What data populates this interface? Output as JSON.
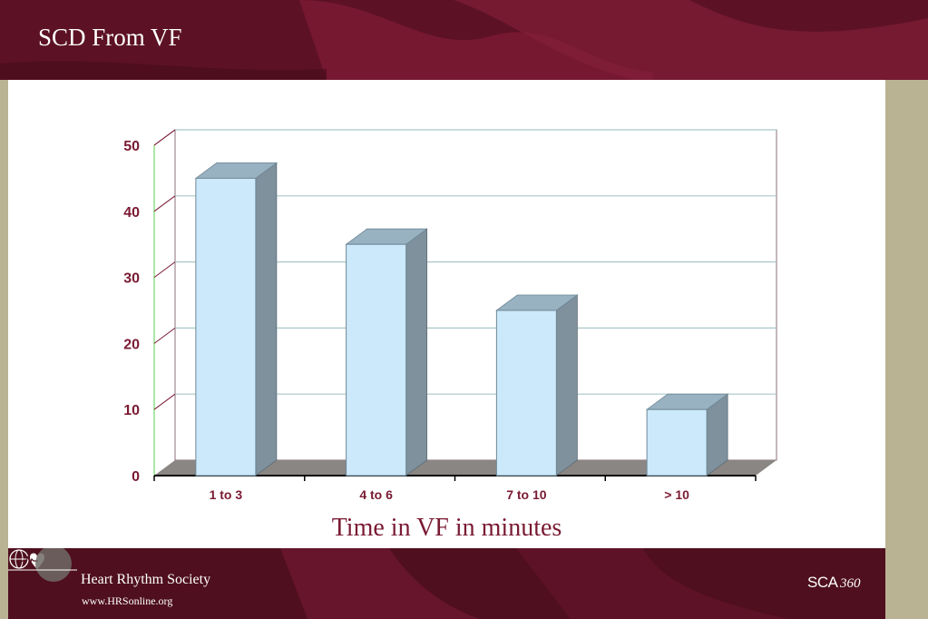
{
  "slide": {
    "title": "SCD From VF",
    "colors": {
      "header": "#5c1224",
      "footer": "#4f0f1e",
      "accent": "#7a1a33",
      "bar_front": "#cce9fb",
      "bar_side": "#7e919d",
      "bar_top": "#98b2c1"
    }
  },
  "footer": {
    "org_name": "Heart Rhythm Society",
    "url": "www.HRSonline.org",
    "badge_text": "SCA",
    "badge_number": "360",
    "logo_icon": "globe-heart-icon"
  },
  "chart_data": {
    "type": "bar",
    "style": "3d-column",
    "categories": [
      "1 to 3",
      "4 to 6",
      "7 to 10",
      "> 10"
    ],
    "values": [
      45,
      35,
      25,
      10
    ],
    "title": "",
    "xlabel": "Time in VF in minutes",
    "ylabel": "",
    "ylim": [
      0,
      50
    ],
    "yticks": [
      "0",
      "10",
      "20",
      "30",
      "40",
      "50"
    ],
    "grid": true,
    "legend": "none"
  }
}
